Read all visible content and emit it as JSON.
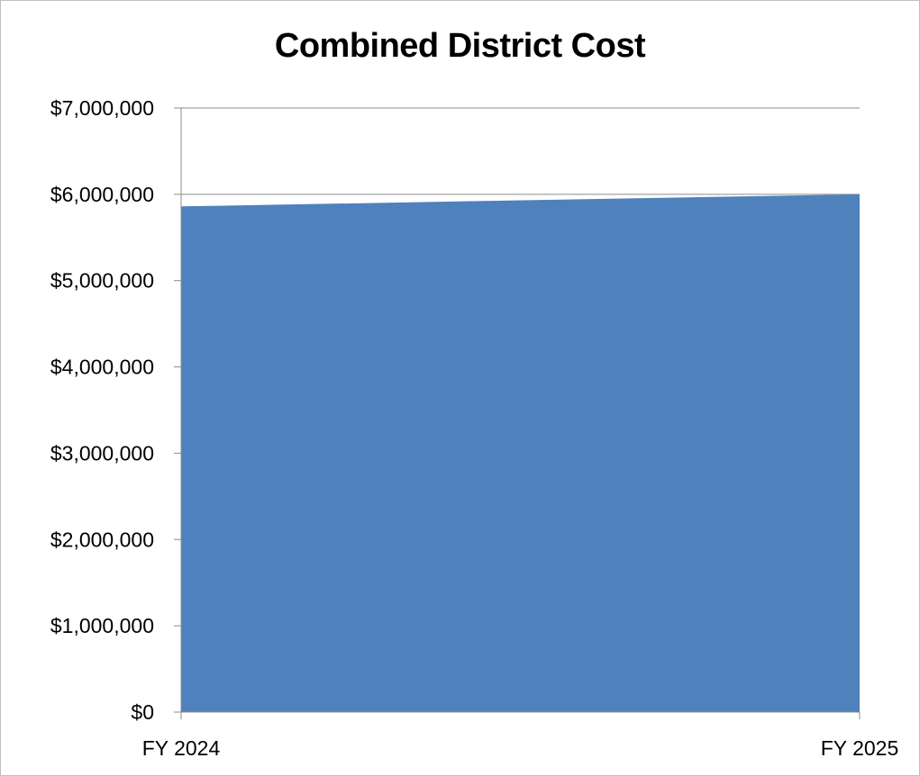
{
  "chart_data": {
    "type": "area",
    "title": "Combined District Cost",
    "xlabel": "",
    "ylabel": "",
    "categories": [
      "FY 2024",
      "FY 2025"
    ],
    "series": [
      {
        "values": [
          5860000,
          6000000
        ],
        "color": "#4f81bd"
      }
    ],
    "ylim": [
      0,
      7000000
    ],
    "yticks": [
      0,
      1000000,
      2000000,
      3000000,
      4000000,
      5000000,
      6000000,
      7000000
    ],
    "ytick_labels": [
      "$0",
      "$1,000,000",
      "$2,000,000",
      "$3,000,000",
      "$4,000,000",
      "$5,000,000",
      "$6,000,000",
      "$7,000,000"
    ],
    "grid": true,
    "legend": "none"
  }
}
